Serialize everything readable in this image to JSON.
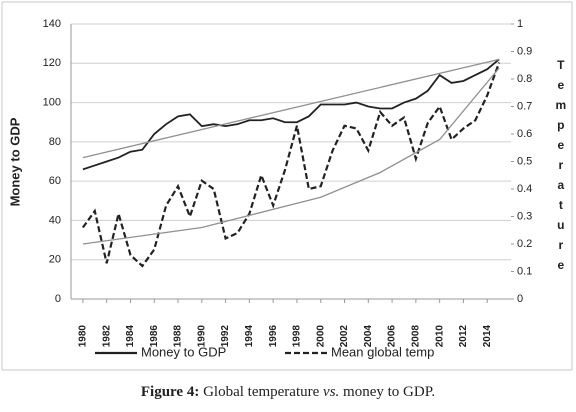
{
  "chart_data": {
    "type": "line",
    "y_label": "Money to GDP",
    "y2_label": "Temperature",
    "x": [
      1980,
      1981,
      1982,
      1983,
      1984,
      1985,
      1986,
      1987,
      1988,
      1989,
      1990,
      1991,
      1992,
      1993,
      1994,
      1995,
      1996,
      1997,
      1998,
      1999,
      2000,
      2001,
      2002,
      2003,
      2004,
      2005,
      2006,
      2007,
      2008,
      2009,
      2010,
      2011,
      2012,
      2013,
      2014,
      2015
    ],
    "series": [
      {
        "name": "Money to GDP",
        "color": "#222222",
        "line_style": "solid",
        "axis": "y",
        "values": [
          66,
          68,
          70,
          72,
          75,
          76,
          84,
          89,
          93,
          94,
          88,
          89,
          88,
          89,
          91,
          91,
          92,
          90,
          90,
          93,
          99,
          99,
          99,
          100,
          98,
          97,
          97,
          100,
          102,
          106,
          114,
          110,
          111,
          114,
          117,
          122
        ]
      },
      {
        "name": "Mean global temp",
        "color": "#222222",
        "line_style": "dashed",
        "axis": "y2",
        "values": [
          0.26,
          0.32,
          0.13,
          0.31,
          0.16,
          0.12,
          0.18,
          0.34,
          0.41,
          0.3,
          0.43,
          0.4,
          0.22,
          0.24,
          0.31,
          0.45,
          0.34,
          0.47,
          0.63,
          0.4,
          0.41,
          0.54,
          0.63,
          0.62,
          0.54,
          0.68,
          0.63,
          0.66,
          0.51,
          0.64,
          0.7,
          0.58,
          0.62,
          0.65,
          0.74,
          0.86
        ]
      },
      {
        "color": "#909090",
        "line_style": "solid",
        "axis": "y",
        "x": [
          1980,
          2015
        ],
        "values": [
          72,
          122
        ]
      },
      {
        "color": "#909090",
        "line_style": "solid",
        "axis": "y2",
        "x": [
          1980,
          1990,
          2000,
          2005,
          2010,
          2015
        ],
        "values": [
          0.2,
          0.26,
          0.37,
          0.46,
          0.58,
          0.84
        ]
      }
    ],
    "xlim": [
      1979,
      2016
    ],
    "xticks": [
      1980,
      1982,
      1984,
      1986,
      1988,
      1990,
      1992,
      1994,
      1996,
      1998,
      2000,
      2002,
      2004,
      2006,
      2008,
      2010,
      2012,
      2014
    ],
    "ylim": [
      0,
      140
    ],
    "yticks": [
      0,
      20,
      40,
      60,
      80,
      100,
      120,
      140
    ],
    "y2lim": [
      0,
      1
    ],
    "y2ticks": [
      0,
      0.1,
      0.2,
      0.3,
      0.4,
      0.5,
      0.6,
      0.7,
      0.8,
      0.9,
      1
    ],
    "grid": true,
    "legend": "bottom"
  },
  "caption": {
    "label": "Figure 4:",
    "before": " Global temperature ",
    "emphasis": "vs.",
    "after": " money to GDP."
  }
}
